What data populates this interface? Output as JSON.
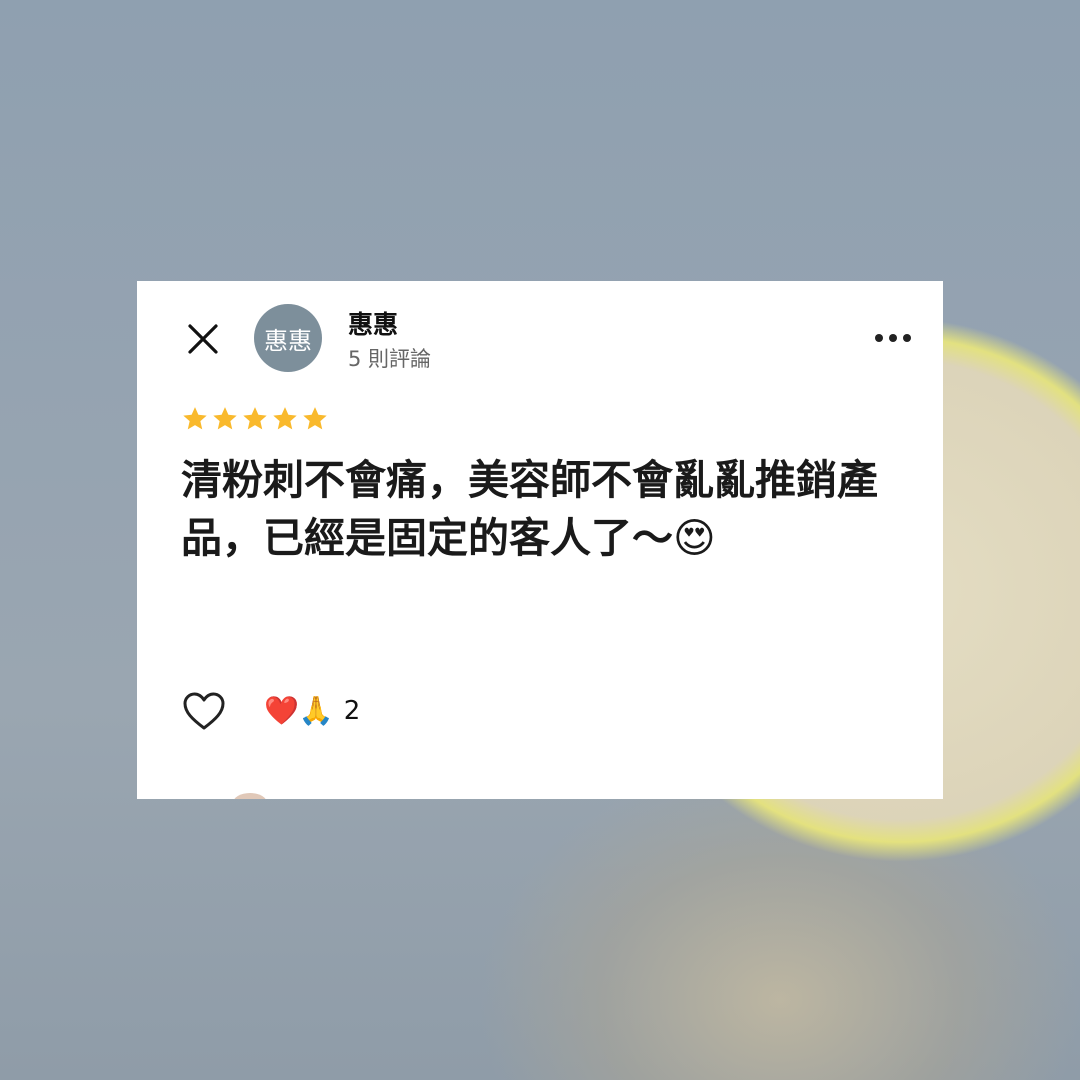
{
  "header": {
    "close_icon": "close-icon",
    "avatar_text": "惠惠",
    "username": "惠惠",
    "review_count": "5 則評論",
    "more_icon": "more-horizontal-icon"
  },
  "review": {
    "rating": 5,
    "max_rating": 5,
    "star_color": "#f9b92c",
    "text": "清粉刺不會痛，美容師不會亂亂推銷產品，已經是固定的客人了～😍"
  },
  "reactions": {
    "like_icon": "heart-outline-icon",
    "emojis": "❤️🙏",
    "count": "2"
  },
  "colors": {
    "avatar_bg": "#7d8f9b",
    "card_bg": "#ffffff"
  }
}
